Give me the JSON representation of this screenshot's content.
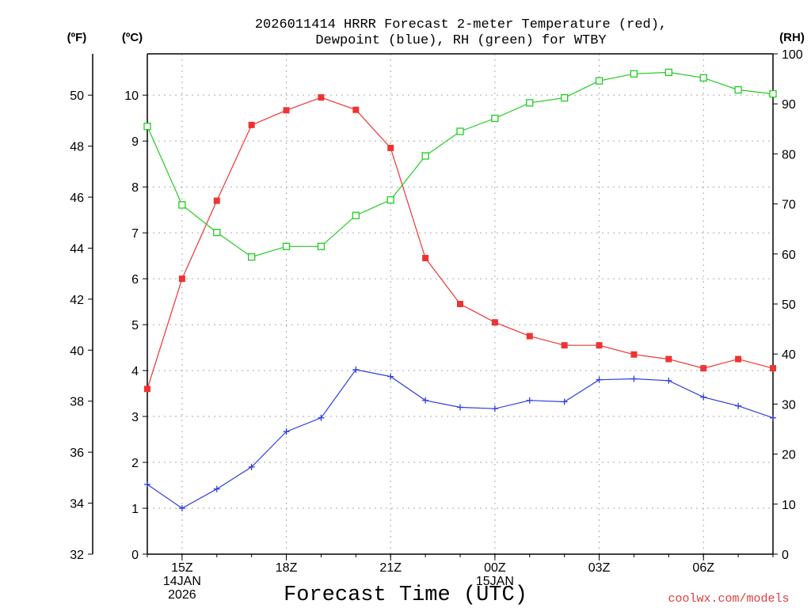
{
  "title_line1": "2026011414 HRRR Forecast 2-meter Temperature (red),",
  "title_line2": "Dewpoint (blue), RH (green) for WTBY",
  "unit_f": "(ºF)",
  "unit_c": "(ºC)",
  "unit_rh": "(RH)",
  "watermark": "coolwx.com/models",
  "colors": {
    "temp": "#ee3333",
    "dewpoint": "#2e3ee0",
    "rh": "#22cc22"
  },
  "chart_data": {
    "type": "line",
    "title": "2026011414 HRRR Forecast 2-meter Temperature (red), Dewpoint (blue), RH (green) for WTBY",
    "xlabel": "Forecast Time (UTC)",
    "ylabel_left_f": "(ºF)",
    "ylabel_left_c": "(ºC)",
    "ylabel_right": "(RH)",
    "x_hours": [
      14,
      15,
      16,
      17,
      18,
      19,
      20,
      21,
      22,
      23,
      24,
      25,
      26,
      27,
      28,
      29,
      30,
      31,
      32
    ],
    "xlim": [
      14,
      32
    ],
    "ylim_c": [
      0,
      10.9
    ],
    "ylim_rh": [
      0,
      100
    ],
    "f_ticks": [
      {
        "value": 32,
        "label": "32"
      },
      {
        "value": 34,
        "label": "34"
      },
      {
        "value": 36,
        "label": "36"
      },
      {
        "value": 38,
        "label": "38"
      },
      {
        "value": 40,
        "label": "40"
      },
      {
        "value": 42,
        "label": "42"
      },
      {
        "value": 44,
        "label": "44"
      },
      {
        "value": 46,
        "label": "46"
      },
      {
        "value": 48,
        "label": "48"
      },
      {
        "value": 50,
        "label": "50"
      }
    ],
    "c_ticks": [
      {
        "value": 0,
        "label": "0"
      },
      {
        "value": 1,
        "label": "1"
      },
      {
        "value": 2,
        "label": "2"
      },
      {
        "value": 3,
        "label": "3"
      },
      {
        "value": 4,
        "label": "4"
      },
      {
        "value": 5,
        "label": "5"
      },
      {
        "value": 6,
        "label": "6"
      },
      {
        "value": 7,
        "label": "7"
      },
      {
        "value": 8,
        "label": "8"
      },
      {
        "value": 9,
        "label": "9"
      },
      {
        "value": 10,
        "label": "10"
      }
    ],
    "rh_ticks": [
      {
        "value": 0,
        "label": "0"
      },
      {
        "value": 10,
        "label": "10"
      },
      {
        "value": 20,
        "label": "20"
      },
      {
        "value": 30,
        "label": "30"
      },
      {
        "value": 40,
        "label": "40"
      },
      {
        "value": 50,
        "label": "50"
      },
      {
        "value": 60,
        "label": "60"
      },
      {
        "value": 70,
        "label": "70"
      },
      {
        "value": 80,
        "label": "80"
      },
      {
        "value": 90,
        "label": "90"
      },
      {
        "value": 100,
        "label": "100"
      }
    ],
    "x_ticks": [
      {
        "hour": 15,
        "lines": [
          "15Z",
          "14JAN",
          "2026"
        ]
      },
      {
        "hour": 18,
        "lines": [
          "18Z"
        ]
      },
      {
        "hour": 21,
        "lines": [
          "21Z"
        ]
      },
      {
        "hour": 24,
        "lines": [
          "00Z",
          "15JAN"
        ]
      },
      {
        "hour": 27,
        "lines": [
          "03Z"
        ]
      },
      {
        "hour": 30,
        "lines": [
          "06Z"
        ]
      }
    ],
    "series": [
      {
        "name": "Temperature",
        "unit": "C",
        "color": "#ee3333",
        "marker": "filled-square",
        "values": [
          3.6,
          6.0,
          7.7,
          9.35,
          9.67,
          9.95,
          9.68,
          8.85,
          6.45,
          5.45,
          5.05,
          4.75,
          4.55,
          4.55,
          4.35,
          4.25,
          4.05,
          4.25,
          4.05
        ]
      },
      {
        "name": "Dewpoint",
        "unit": "C",
        "color": "#2e3ee0",
        "marker": "plus",
        "values": [
          1.52,
          1.0,
          1.42,
          1.9,
          2.67,
          2.97,
          4.02,
          3.87,
          3.35,
          3.2,
          3.17,
          3.35,
          3.32,
          3.8,
          3.82,
          3.78,
          3.42,
          3.23,
          2.97
        ]
      },
      {
        "name": "RH",
        "unit": "%",
        "color": "#22cc22",
        "marker": "open-square",
        "values": [
          85.5,
          69.8,
          64.3,
          59.4,
          61.5,
          61.5,
          67.7,
          70.8,
          79.6,
          84.5,
          87.1,
          90.2,
          91.2,
          94.6,
          96.0,
          96.3,
          95.2,
          92.8,
          92.0
        ]
      }
    ]
  }
}
